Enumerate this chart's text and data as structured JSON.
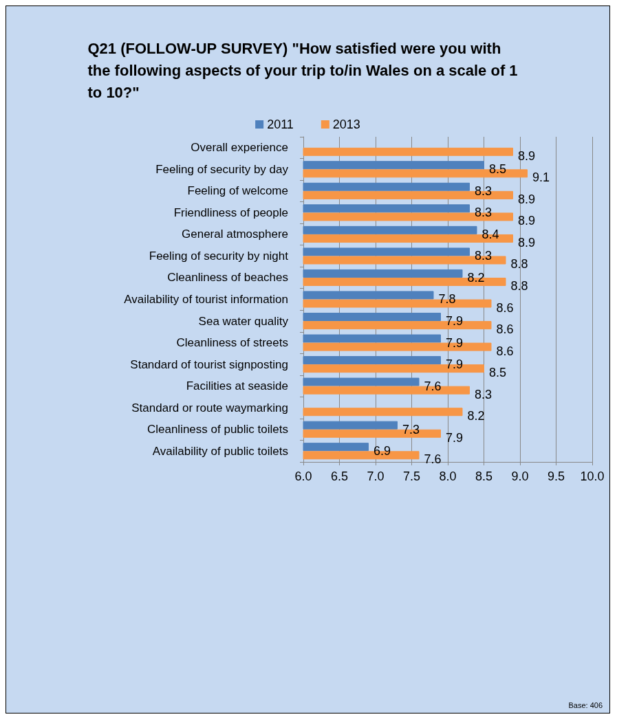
{
  "chart_data": {
    "type": "bar",
    "orientation": "horizontal",
    "title": "Q21 (FOLLOW-UP SURVEY) \"How satisfied were you with the following aspects of your trip to/in Wales on a scale of 1 to 10?\"",
    "categories": [
      "Overall experience",
      "Feeling of security by day",
      "Feeling of welcome",
      "Friendliness of people",
      "General atmosphere",
      "Feeling of security by night",
      "Cleanliness of beaches",
      "Availability of tourist information",
      "Sea water quality",
      "Cleanliness of streets",
      "Standard of tourist signposting",
      "Facilities at seaside",
      "Standard or route waymarking",
      "Cleanliness of public toilets",
      "Availability of public toilets"
    ],
    "series": [
      {
        "name": "2011",
        "color": "#4f81bd",
        "values": [
          null,
          8.5,
          8.3,
          8.3,
          8.4,
          8.3,
          8.2,
          7.8,
          7.9,
          7.9,
          7.9,
          7.6,
          null,
          7.3,
          6.9
        ]
      },
      {
        "name": "2013",
        "color": "#f79646",
        "values": [
          8.9,
          9.1,
          8.9,
          8.9,
          8.9,
          8.8,
          8.8,
          8.6,
          8.6,
          8.6,
          8.5,
          8.3,
          8.2,
          7.9,
          7.6
        ]
      }
    ],
    "xlim": [
      6,
      10
    ],
    "xticks": [
      {
        "value": 6,
        "label": "6.0"
      },
      {
        "value": 6.5,
        "label": "6.5"
      },
      {
        "value": 7,
        "label": "7.0"
      },
      {
        "value": 7.5,
        "label": "7.5"
      },
      {
        "value": 8,
        "label": "8.0"
      },
      {
        "value": 8.5,
        "label": "8.5"
      },
      {
        "value": 9,
        "label": "9.0"
      },
      {
        "value": 9.5,
        "label": "9.5"
      },
      {
        "value": 10,
        "label": "10.0"
      }
    ],
    "grid": "x",
    "legend": "top",
    "data_labels": true,
    "annotations": [
      "Base: 406"
    ]
  }
}
